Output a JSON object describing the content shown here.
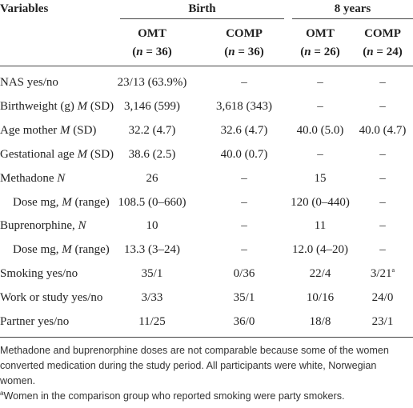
{
  "table": {
    "header": {
      "variables": "Variables",
      "groups": [
        {
          "label": "Birth",
          "columns": [
            {
              "label": "OMT",
              "n": [
                {
                  "text": "("
                },
                {
                  "text": "n",
                  "italic": true
                },
                {
                  "text": " = 36)"
                }
              ]
            },
            {
              "label": "COMP",
              "n": [
                {
                  "text": "("
                },
                {
                  "text": "n",
                  "italic": true
                },
                {
                  "text": " = 36)"
                }
              ]
            }
          ]
        },
        {
          "label": "8 years",
          "columns": [
            {
              "label": "OMT",
              "n": [
                {
                  "text": "("
                },
                {
                  "text": "n",
                  "italic": true
                },
                {
                  "text": " = 26)"
                }
              ]
            },
            {
              "label": "COMP",
              "n": [
                {
                  "text": "("
                },
                {
                  "text": "n",
                  "italic": true
                },
                {
                  "text": " = 24)"
                }
              ]
            }
          ]
        }
      ]
    },
    "rows": [
      {
        "label": [
          {
            "text": "NAS yes/no"
          }
        ],
        "cells": [
          "23/13 (63.9%)",
          "–",
          "–",
          "–"
        ]
      },
      {
        "label": [
          {
            "text": "Birthweight (g) "
          },
          {
            "text": "M",
            "italic": true
          },
          {
            "text": " (SD)"
          }
        ],
        "cells": [
          "3,146 (599)",
          "3,618 (343)",
          "–",
          "–"
        ]
      },
      {
        "label": [
          {
            "text": "Age mother "
          },
          {
            "text": "M",
            "italic": true
          },
          {
            "text": " (SD)"
          }
        ],
        "cells": [
          "32.2 (4.7)",
          "32.6 (4.7)",
          "40.0 (5.0)",
          "40.0 (4.7)"
        ]
      },
      {
        "label": [
          {
            "text": "Gestational age "
          },
          {
            "text": "M",
            "italic": true
          },
          {
            "text": " (SD)"
          }
        ],
        "cells": [
          "38.6 (2.5)",
          "40.0 (0.7)",
          "–",
          "–"
        ]
      },
      {
        "label": [
          {
            "text": "Methadone "
          },
          {
            "text": "N",
            "italic": true
          }
        ],
        "cells": [
          "26",
          "–",
          "15",
          "–"
        ]
      },
      {
        "label": [
          {
            "text": "Dose mg, "
          },
          {
            "text": "M",
            "italic": true
          },
          {
            "text": " (range)"
          }
        ],
        "indent": true,
        "cells": [
          "108.5 (0–660)",
          "–",
          "120 (0–440)",
          "–"
        ]
      },
      {
        "label": [
          {
            "text": "Buprenorphine, "
          },
          {
            "text": "N",
            "italic": true
          }
        ],
        "cells": [
          "10",
          "–",
          "11",
          "–"
        ]
      },
      {
        "label": [
          {
            "text": "Dose mg, "
          },
          {
            "text": "M",
            "italic": true
          },
          {
            "text": " (range)"
          }
        ],
        "indent": true,
        "cells": [
          "13.3 (3–24)",
          "–",
          "12.0 (4–20)",
          "–"
        ]
      },
      {
        "label": [
          {
            "text": "Smoking yes/no"
          }
        ],
        "cells": [
          "35/1",
          "0/36",
          "22/4",
          {
            "text": "3/21",
            "sup": "a"
          }
        ]
      },
      {
        "label": [
          {
            "text": "Work or study yes/no"
          }
        ],
        "cells": [
          "3/33",
          "35/1",
          "10/16",
          "24/0"
        ]
      },
      {
        "label": [
          {
            "text": "Partner yes/no"
          }
        ],
        "cells": [
          "11/25",
          "36/0",
          "18/8",
          "23/1"
        ]
      }
    ]
  },
  "notes": [
    {
      "text": "Methadone and buprenorphine doses are not comparable because some of the women converted medication during the study period. All participants were white, Norwegian women."
    },
    {
      "sup": "a",
      "text": "Women in the comparison group who reported smoking were party smokers."
    }
  ]
}
